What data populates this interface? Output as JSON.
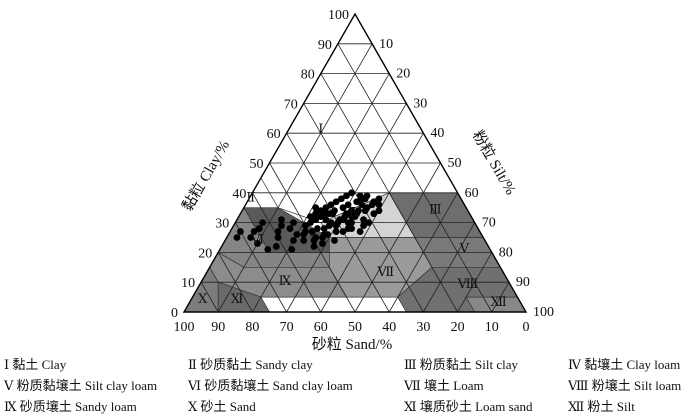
{
  "chart_data": {
    "type": "scatter",
    "subtype": "ternary soil texture triangle",
    "axes": {
      "clay": {
        "label": "黏粒 Clay/%",
        "ticks": [
          "100",
          "90",
          "80",
          "70",
          "60",
          "50",
          "40",
          "30",
          "20",
          "10",
          "0"
        ]
      },
      "silt": {
        "label": "粉粒 Silt/%",
        "ticks": [
          "10",
          "20",
          "30",
          "40",
          "50",
          "60",
          "70",
          "80",
          "90",
          "100"
        ]
      },
      "sand": {
        "label": "砂粒 Sand/%",
        "ticks": [
          "100",
          "90",
          "80",
          "70",
          "60",
          "50",
          "40",
          "30",
          "20",
          "10",
          "0"
        ]
      },
      "range": [
        0,
        100
      ],
      "grid": true
    },
    "regions": [
      {
        "numeral": "Ⅰ",
        "name": "黏土 Clay",
        "color": "#ffffff"
      },
      {
        "numeral": "Ⅱ",
        "name": "砂质黏土 Sandy clay",
        "color": "#5a5a5a"
      },
      {
        "numeral": "Ⅲ",
        "name": "粉质黏土 Silt clay",
        "color": "#6e6e6e"
      },
      {
        "numeral": "Ⅳ",
        "name": "黏壤土 Clay loam",
        "color": "#d4d4d4"
      },
      {
        "numeral": "Ⅴ",
        "name": "粉质黏壤土 Silt clay loam",
        "color": "#7a7a7a"
      },
      {
        "numeral": "Ⅵ",
        "name": "砂质黏壤土 Sand clay loam",
        "color": "#858585"
      },
      {
        "numeral": "Ⅶ",
        "name": "壤土 Loam",
        "color": "#9a9a9a"
      },
      {
        "numeral": "Ⅷ",
        "name": "粉壤土 Silt loam",
        "color": "#707070"
      },
      {
        "numeral": "Ⅸ",
        "name": "砂质壤土 Sandy loam",
        "color": "#8c8c8c"
      },
      {
        "numeral": "Ⅹ",
        "name": "砂土 Sand",
        "color": "#7d7d7d"
      },
      {
        "numeral": "Ⅺ",
        "name": "壤质砂土 Loam sand",
        "color": "#6a6a6a"
      },
      {
        "numeral": "Ⅻ",
        "name": "粉土 Silt",
        "color": "#888888"
      }
    ],
    "points_sand_clay": [
      [
        70,
        27
      ],
      [
        68,
        25
      ],
      [
        66,
        27
      ],
      [
        62,
        22
      ],
      [
        58,
        21
      ],
      [
        55,
        28
      ],
      [
        54,
        26
      ],
      [
        53,
        24
      ],
      [
        51,
        22
      ],
      [
        50,
        29
      ],
      [
        49,
        27
      ],
      [
        48,
        30
      ],
      [
        47,
        25
      ],
      [
        46,
        31
      ],
      [
        45,
        28
      ],
      [
        44,
        32
      ],
      [
        43,
        29
      ],
      [
        42,
        27
      ],
      [
        41,
        33
      ],
      [
        40,
        30
      ],
      [
        39,
        34
      ],
      [
        38,
        31
      ],
      [
        37,
        28
      ],
      [
        36,
        35
      ],
      [
        35,
        32
      ],
      [
        34,
        36
      ],
      [
        33,
        33
      ],
      [
        32,
        31
      ],
      [
        31,
        37
      ],
      [
        30,
        34
      ],
      [
        29,
        35
      ],
      [
        28,
        38
      ],
      [
        27,
        36
      ],
      [
        50,
        24
      ],
      [
        48,
        23
      ],
      [
        46,
        26
      ],
      [
        44,
        24
      ],
      [
        42,
        30
      ],
      [
        40,
        27
      ],
      [
        38,
        28
      ],
      [
        36,
        30
      ],
      [
        34,
        32
      ],
      [
        32,
        34
      ],
      [
        30,
        36
      ],
      [
        29,
        38
      ],
      [
        28,
        33
      ],
      [
        26,
        37
      ],
      [
        31,
        30
      ],
      [
        33,
        29
      ],
      [
        35,
        27
      ],
      [
        52,
        26
      ],
      [
        56,
        24
      ],
      [
        60,
        25
      ],
      [
        47,
        32
      ],
      [
        45,
        33
      ],
      [
        43,
        34
      ],
      [
        41,
        35
      ],
      [
        39,
        36
      ],
      [
        37,
        37
      ],
      [
        35,
        38
      ],
      [
        33,
        39
      ],
      [
        31,
        40
      ],
      [
        29,
        39
      ],
      [
        27,
        39
      ],
      [
        26,
        34
      ],
      [
        25,
        36
      ],
      [
        24,
        38
      ],
      [
        45,
        26
      ],
      [
        49,
        25
      ],
      [
        39,
        31
      ],
      [
        37,
        32
      ],
      [
        34,
        34
      ],
      [
        37,
        30
      ],
      [
        41,
        29
      ],
      [
        43,
        31
      ],
      [
        47,
        28
      ],
      [
        51,
        27
      ],
      [
        53,
        30
      ],
      [
        57,
        29
      ],
      [
        62,
        30
      ],
      [
        64,
        28
      ],
      [
        67,
        23
      ],
      [
        72,
        25
      ],
      [
        65,
        21
      ],
      [
        59,
        27
      ],
      [
        56,
        31
      ],
      [
        42,
        33
      ],
      [
        44,
        35
      ],
      [
        40,
        33
      ],
      [
        36,
        33
      ]
    ]
  },
  "legend": [
    [
      {
        "numeral": "Ⅰ",
        "text": "黏土 Clay"
      },
      {
        "numeral": "Ⅱ",
        "text": "砂质黏土 Sandy clay"
      },
      {
        "numeral": "Ⅲ",
        "text": "粉质黏土 Silt clay"
      },
      {
        "numeral": "Ⅳ",
        "text": "黏壤土 Clay loam"
      }
    ],
    [
      {
        "numeral": "Ⅴ",
        "text": "粉质黏壤土 Silt clay loam"
      },
      {
        "numeral": "Ⅵ",
        "text": "砂质黏壤土 Sand clay loam"
      },
      {
        "numeral": "Ⅶ",
        "text": "壤土 Loam"
      },
      {
        "numeral": "Ⅷ",
        "text": "粉壤土 Silt loam"
      }
    ],
    [
      {
        "numeral": "Ⅸ",
        "text": "砂质壤土 Sandy loam"
      },
      {
        "numeral": "Ⅹ",
        "text": "砂土 Sand"
      },
      {
        "numeral": "Ⅺ",
        "text": "壤质砂土 Loam sand"
      },
      {
        "numeral": "Ⅻ",
        "text": "粉土 Silt"
      }
    ]
  ]
}
